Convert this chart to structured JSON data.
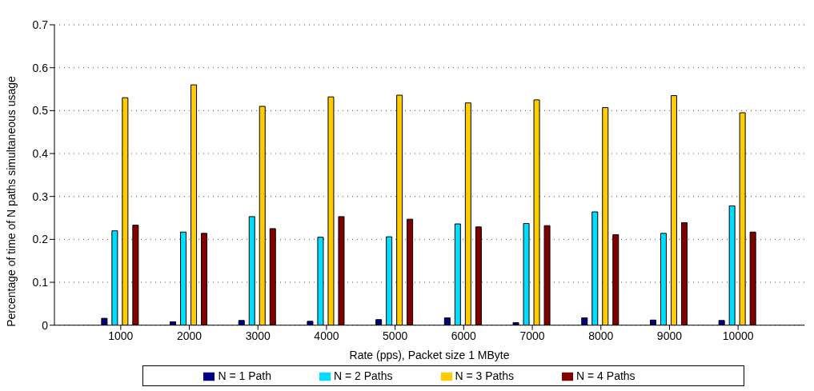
{
  "chart_data": {
    "type": "bar",
    "xlabel": "Rate (pps), Packet size 1 MByte",
    "ylabel": "Percentage of time of N paths simultaneous usage",
    "categories": [
      "1000",
      "2000",
      "3000",
      "4000",
      "5000",
      "6000",
      "7000",
      "8000",
      "9000",
      "10000"
    ],
    "series": [
      {
        "name": "N = 1 Path",
        "color": "#000080",
        "values": [
          0.016,
          0.008,
          0.011,
          0.009,
          0.013,
          0.017,
          0.006,
          0.017,
          0.012,
          0.011
        ]
      },
      {
        "name": "N = 2 Paths",
        "color": "#00ddff",
        "values": [
          0.22,
          0.217,
          0.253,
          0.205,
          0.206,
          0.236,
          0.237,
          0.264,
          0.214,
          0.278
        ]
      },
      {
        "name": "N = 3 Paths",
        "color": "#ffcc00",
        "values": [
          0.53,
          0.56,
          0.51,
          0.532,
          0.536,
          0.518,
          0.525,
          0.507,
          0.535,
          0.495
        ]
      },
      {
        "name": "N = 4 Paths",
        "color": "#800000",
        "values": [
          0.233,
          0.214,
          0.225,
          0.253,
          0.247,
          0.229,
          0.232,
          0.211,
          0.239,
          0.217
        ]
      }
    ],
    "ylim": [
      0,
      0.7
    ],
    "yticks": [
      0,
      0.1,
      0.2,
      0.3,
      0.4,
      0.5,
      0.6,
      0.7
    ],
    "grid": "y",
    "legend": "bottom"
  }
}
